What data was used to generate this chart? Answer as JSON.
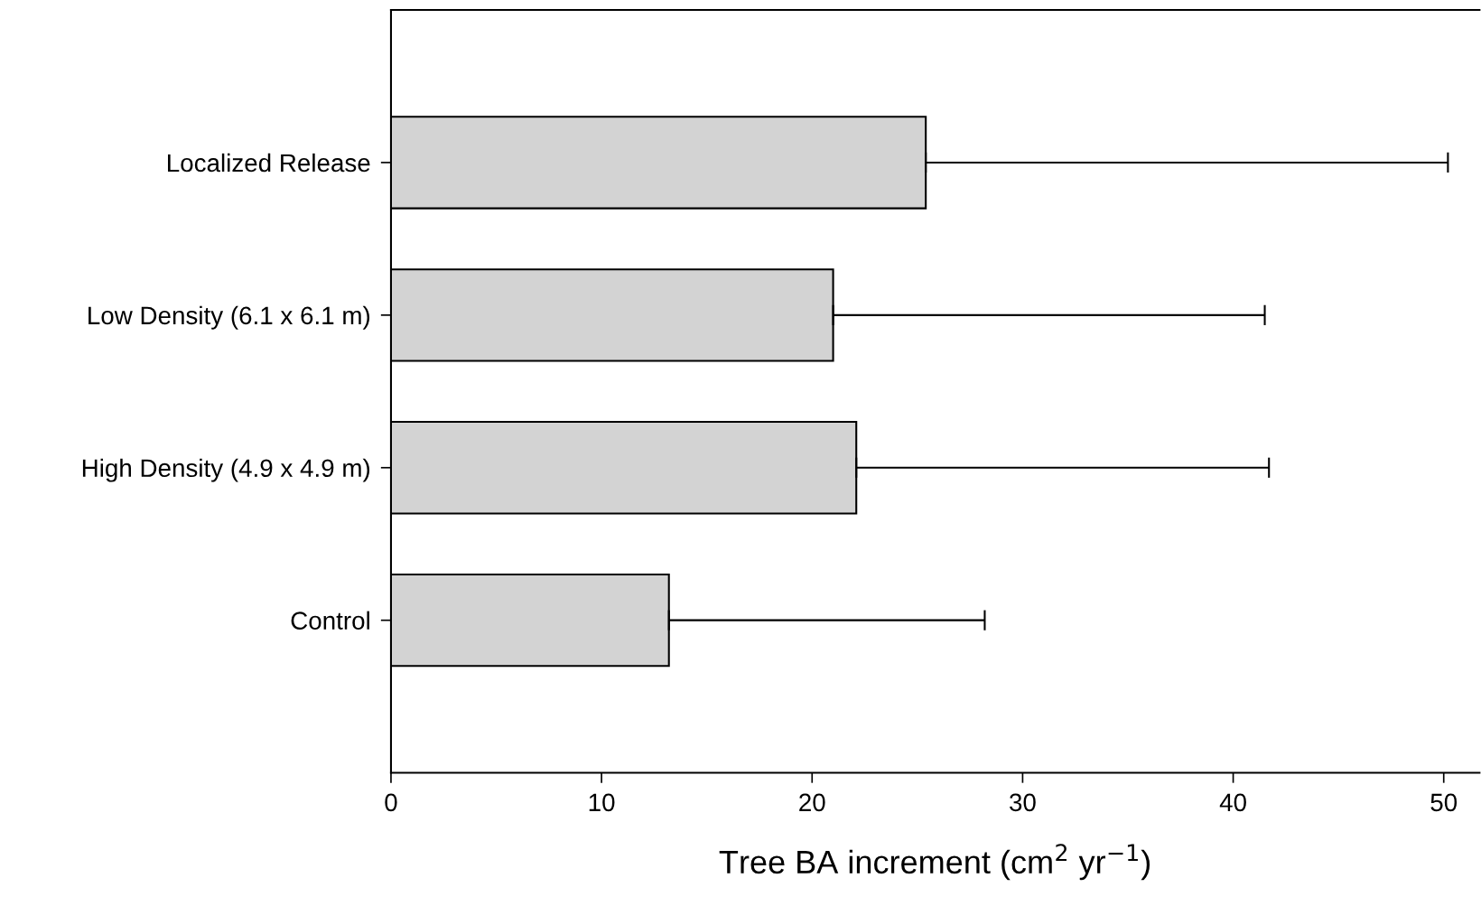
{
  "chart_data": {
    "type": "bar",
    "orientation": "horizontal",
    "categories": [
      "Localized Release",
      "Low Density (6.1 x 6.1 m)",
      "High Density (4.9 x 4.9 m)",
      "Control"
    ],
    "values": [
      25.4,
      21.0,
      22.1,
      13.2
    ],
    "errors": [
      [
        25.4,
        50.2
      ],
      [
        21.0,
        41.5
      ],
      [
        22.1,
        41.7
      ],
      [
        13.2,
        28.2
      ]
    ],
    "color": "#d3d3d3",
    "xlabel": "Tree BA increment (cm$^{2}$ yr$^{−1}$)",
    "xlim": [
      0,
      51.7
    ],
    "xticks": [
      0,
      10,
      20,
      30,
      40,
      50
    ],
    "grid": false
  }
}
